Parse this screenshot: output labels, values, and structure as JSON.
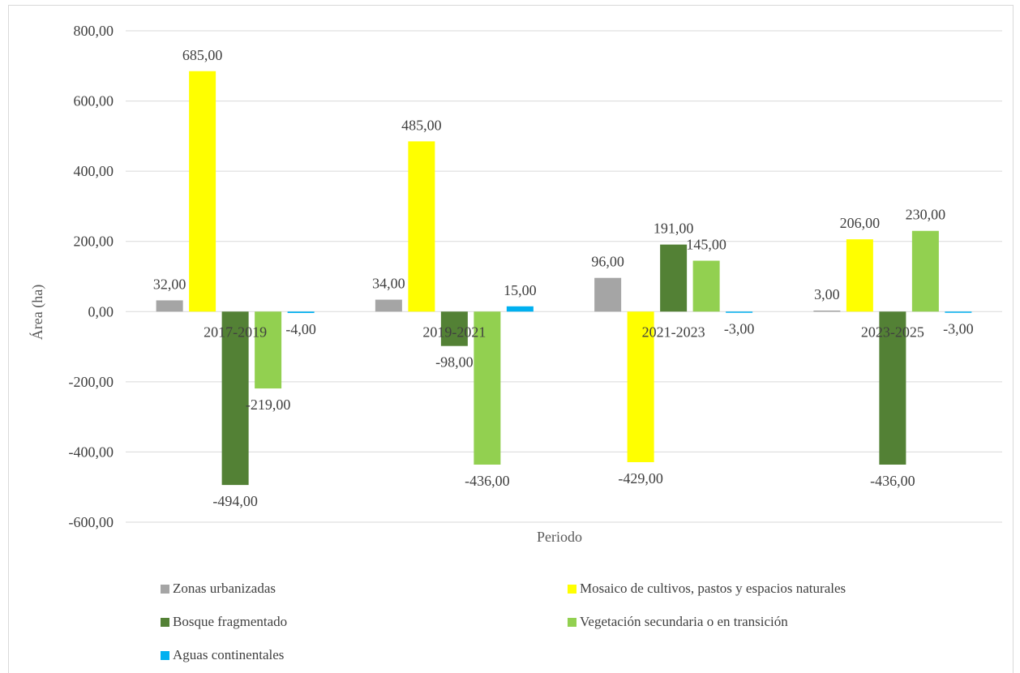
{
  "chart_data": {
    "type": "bar",
    "title": "",
    "xlabel": "Periodo",
    "ylabel": "Área (ha)",
    "ylim": [
      -600,
      800
    ],
    "yticks": [
      800,
      600,
      400,
      200,
      0,
      -200,
      -400,
      -600
    ],
    "ytick_labels": [
      "800,00",
      "600,00",
      "400,00",
      "200,00",
      "0,00",
      "-200,00",
      "-400,00",
      "-600,00"
    ],
    "grid": true,
    "legend_position": "bottom",
    "categories": [
      "2017-2019",
      "2019-2021",
      "2021-2023",
      "2023-2025"
    ],
    "series": [
      {
        "name": "Zonas urbanizadas",
        "color": "#a5a5a5",
        "values": [
          32,
          34,
          96,
          3
        ],
        "labels": [
          "32,00",
          "34,00",
          "96,00",
          "3,00"
        ]
      },
      {
        "name": "Mosaico de cultivos, pastos y espacios naturales",
        "color": "#ffff00",
        "values": [
          685,
          485,
          -429,
          206
        ],
        "labels": [
          "685,00",
          "485,00",
          "-429,00",
          "206,00"
        ]
      },
      {
        "name": "Bosque fragmentado",
        "color": "#538135",
        "values": [
          -494,
          -98,
          191,
          -436
        ],
        "labels": [
          "-494,00",
          "-98,00",
          "191,00",
          "-436,00"
        ]
      },
      {
        "name": "Vegetación secundaria o en transición",
        "color": "#92d050",
        "values": [
          -219,
          -436,
          145,
          230
        ],
        "labels": [
          "-219,00",
          "-436,00",
          "145,00",
          "230,00"
        ]
      },
      {
        "name": "Aguas continentales",
        "color": "#00b0f0",
        "values": [
          -4,
          15,
          -3,
          -3
        ],
        "labels": [
          "-4,00",
          "15,00",
          "-3,00",
          "-3,00"
        ]
      }
    ]
  }
}
